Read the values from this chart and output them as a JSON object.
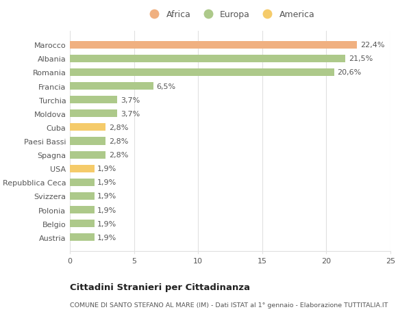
{
  "categories": [
    "Austria",
    "Belgio",
    "Polonia",
    "Svizzera",
    "Repubblica Ceca",
    "USA",
    "Spagna",
    "Paesi Bassi",
    "Cuba",
    "Moldova",
    "Turchia",
    "Francia",
    "Romania",
    "Albania",
    "Marocco"
  ],
  "values": [
    1.9,
    1.9,
    1.9,
    1.9,
    1.9,
    1.9,
    2.8,
    2.8,
    2.8,
    3.7,
    3.7,
    6.5,
    20.6,
    21.5,
    22.4
  ],
  "colors": [
    "#adc98a",
    "#adc98a",
    "#adc98a",
    "#adc98a",
    "#adc98a",
    "#f5cb6a",
    "#adc98a",
    "#adc98a",
    "#f5cb6a",
    "#adc98a",
    "#adc98a",
    "#adc98a",
    "#adc98a",
    "#adc98a",
    "#f0b080"
  ],
  "labels": [
    "1,9%",
    "1,9%",
    "1,9%",
    "1,9%",
    "1,9%",
    "1,9%",
    "2,8%",
    "2,8%",
    "2,8%",
    "3,7%",
    "3,7%",
    "6,5%",
    "20,6%",
    "21,5%",
    "22,4%"
  ],
  "legend": [
    {
      "label": "Africa",
      "color": "#f0b080"
    },
    {
      "label": "Europa",
      "color": "#adc98a"
    },
    {
      "label": "America",
      "color": "#f5cb6a"
    }
  ],
  "title": "Cittadini Stranieri per Cittadinanza",
  "subtitle": "COMUNE DI SANTO STEFANO AL MARE (IM) - Dati ISTAT al 1° gennaio - Elaborazione TUTTITALIA.IT",
  "xlim": [
    0,
    25
  ],
  "xticks": [
    0,
    5,
    10,
    15,
    20,
    25
  ],
  "background_color": "#ffffff",
  "grid_color": "#e0e0e0",
  "text_color": "#555555",
  "label_fontsize": 8.0,
  "tick_fontsize": 8.0,
  "bar_height": 0.55
}
